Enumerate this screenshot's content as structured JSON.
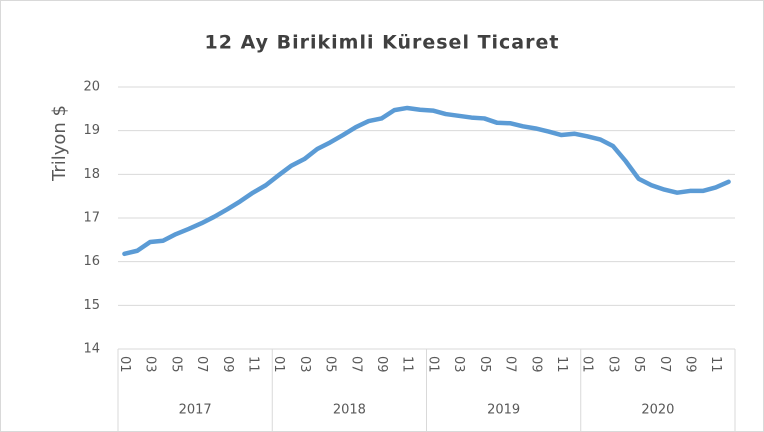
{
  "chart_data": {
    "type": "line",
    "title": "12 Ay Birikimli Küresel Ticaret",
    "y_label": "Trilyon $",
    "categories": [
      "01",
      null,
      "03",
      null,
      "05",
      null,
      "07",
      null,
      "09",
      null,
      "11",
      null,
      "01",
      null,
      "03",
      null,
      "05",
      null,
      "07",
      null,
      "09",
      null,
      "11",
      null,
      "01",
      null,
      "03",
      null,
      "05",
      null,
      "07",
      null,
      "09",
      null,
      "11",
      null,
      "01",
      null,
      "03",
      null,
      "05",
      null,
      "07",
      null,
      "09",
      null,
      "11",
      null
    ],
    "groups": [
      "2017",
      "2018",
      "2019",
      "2020"
    ],
    "series": [
      {
        "name": "Küresel Ticaret",
        "color": "#5b9bd5",
        "values": [
          16.18,
          16.25,
          16.45,
          16.48,
          16.63,
          16.75,
          16.88,
          17.03,
          17.2,
          17.38,
          17.58,
          17.75,
          17.98,
          18.2,
          18.35,
          18.58,
          18.73,
          18.9,
          19.08,
          19.22,
          19.28,
          19.47,
          19.52,
          19.48,
          19.46,
          19.38,
          19.34,
          19.3,
          19.28,
          19.18,
          19.17,
          19.1,
          19.05,
          18.98,
          18.9,
          18.93,
          18.87,
          18.8,
          18.65,
          18.3,
          17.9,
          17.75,
          17.65,
          17.58,
          17.62,
          17.62,
          17.7,
          17.83
        ]
      }
    ],
    "ylim": [
      14,
      20
    ],
    "yticks": [
      14,
      15,
      16,
      17,
      18,
      19,
      20
    ],
    "grid": true
  }
}
